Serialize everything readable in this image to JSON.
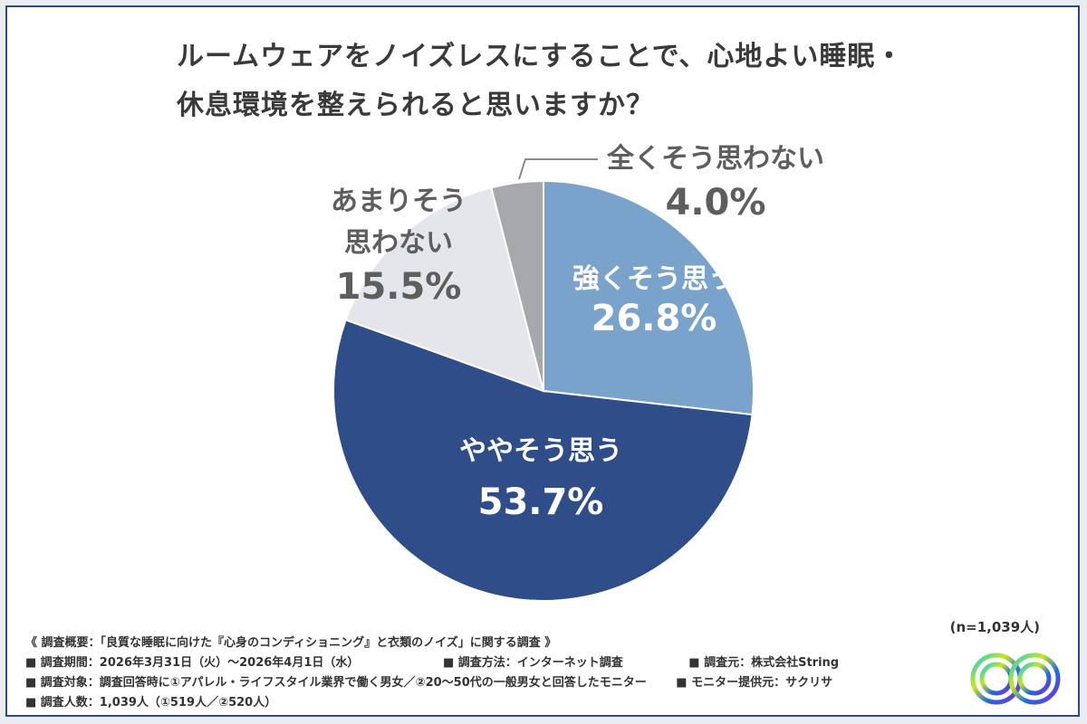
{
  "title_line1": "ルームウェアをノイズレスにすることで、心地よい睡眠・",
  "title_line2": "休息環境を整えられると思いますか？",
  "sample_size": "(n=1,039人)",
  "survey": {
    "heading": "《 調査概要：「良質な睡眠に向けた『心身のコンディショニング』と衣類のノイズ」に関する調査 》",
    "period": "■ 調査期間：2026年3月31日（火）〜2026年4月1日（水）",
    "method": "■ 調査方法：インターネット調査",
    "source": "■ 調査元：株式会社String",
    "target": "■ 調査対象：調査回答時に①アパレル・ライフスタイル業界で働く男女／②20〜50代の一般男女と回答したモニター",
    "provider": "■ モニター提供元：サクリサ",
    "count": "■ 調査人数：1,039人（①519人／②520人）"
  },
  "chart_data": {
    "type": "pie",
    "start_angle_deg": 0,
    "direction": "clockwise",
    "slices": [
      {
        "label_lines": [
          "強くそう思う"
        ],
        "value": 26.8,
        "value_label": "26.8%",
        "color": "#7aa3cc",
        "text_color": "#ffffff"
      },
      {
        "label_lines": [
          "ややそう思う"
        ],
        "value": 53.7,
        "value_label": "53.7%",
        "color": "#2f4d88",
        "text_color": "#ffffff"
      },
      {
        "label_lines": [
          "あまりそう",
          "思わない"
        ],
        "value": 15.5,
        "value_label": "15.5%",
        "color": "#e5e6eb",
        "text_color": "#5e5e5e"
      },
      {
        "label_lines": [
          "全くそう思わない"
        ],
        "value": 4.0,
        "value_label": "4.0%",
        "color": "#a7a8ab",
        "text_color": "#5e5e5e"
      }
    ]
  }
}
